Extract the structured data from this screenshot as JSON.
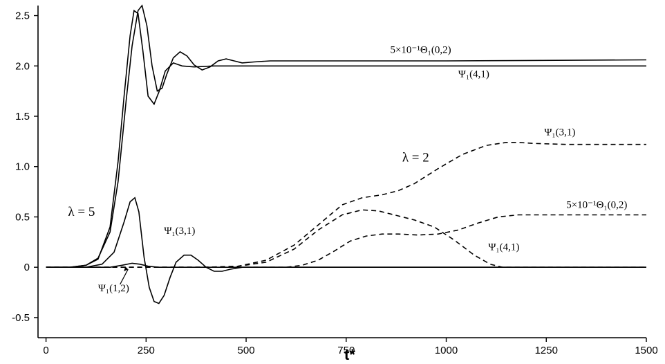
{
  "chart_data": {
    "type": "line",
    "title": "",
    "xlabel": "t*",
    "ylabel": "",
    "xlim": [
      -20,
      1500
    ],
    "ylim": [
      -0.7,
      2.6
    ],
    "x_ticks": [
      0,
      250,
      500,
      750,
      1000,
      1250,
      1500
    ],
    "y_ticks": [
      -0.5,
      0,
      0.5,
      1.0,
      1.5,
      2.0,
      2.5
    ],
    "x_tick_labels": [
      "0",
      "250",
      "500",
      "750",
      "1000",
      "1250",
      "1500"
    ],
    "y_tick_labels": [
      "-0.5",
      "0",
      "0.5",
      "1.0",
      "1.5",
      "2.0",
      "2.5"
    ],
    "grid": false,
    "annotations": [
      {
        "id": "lam5",
        "text": "λ = 5",
        "x": 55,
        "y": 0.51
      },
      {
        "id": "lam2",
        "text": "λ = 2",
        "x": 890,
        "y": 1.05
      },
      {
        "id": "t_theta_solid",
        "text": "5×10⁻¹Θ₁(0,2)",
        "x": 860,
        "y": 2.13
      },
      {
        "id": "t_psi41_solid",
        "text": "Ψ₁(4,1)",
        "x": 1030,
        "y": 1.89
      },
      {
        "id": "t_psi31_dashed",
        "text": "Ψ₁(3,1)",
        "x": 1245,
        "y": 1.31
      },
      {
        "id": "t_theta_dashed",
        "text": "5×10⁻¹Θ₁(0,2)",
        "x": 1300,
        "y": 0.59
      },
      {
        "id": "t_psi31_solid",
        "text": "Ψ₁(3,1)",
        "x": 295,
        "y": 0.33
      },
      {
        "id": "t_psi41_dashed",
        "text": "Ψ₁(4,1)",
        "x": 1105,
        "y": 0.17
      },
      {
        "id": "t_psi12",
        "text": "Ψ₁(1,2)",
        "x": 130,
        "y": -0.24
      }
    ],
    "series": [
      {
        "style": "solid",
        "label": "5×10⁻¹Θ₁(0,2)",
        "group": "λ = 5",
        "x": [
          0,
          60,
          100,
          130,
          160,
          180,
          200,
          215,
          230,
          240,
          252,
          265,
          278,
          290,
          302,
          318,
          335,
          352,
          370,
          390,
          410,
          430,
          450,
          470,
          490,
          520,
          560,
          700,
          1000,
          1500
        ],
        "y": [
          0,
          0,
          0.02,
          0.09,
          0.35,
          0.85,
          1.65,
          2.2,
          2.55,
          2.6,
          2.4,
          2.0,
          1.75,
          1.78,
          1.92,
          2.08,
          2.14,
          2.1,
          2.01,
          1.96,
          1.99,
          2.05,
          2.07,
          2.05,
          2.03,
          2.04,
          2.05,
          2.05,
          2.05,
          2.06
        ]
      },
      {
        "style": "solid",
        "label": "Ψ₁(4,1)",
        "group": "λ = 5",
        "x": [
          0,
          60,
          100,
          130,
          160,
          180,
          195,
          210,
          220,
          230,
          242,
          255,
          270,
          283,
          298,
          318,
          340,
          370,
          420,
          500,
          700,
          1000,
          1500
        ],
        "y": [
          0,
          0,
          0.02,
          0.08,
          0.4,
          1.05,
          1.7,
          2.3,
          2.55,
          2.52,
          2.15,
          1.7,
          1.62,
          1.75,
          1.95,
          2.03,
          2.0,
          1.99,
          2.0,
          2.0,
          2.0,
          2.0,
          2.0
        ]
      },
      {
        "style": "solid",
        "label": "Ψ₁(3,1)",
        "group": "λ = 5",
        "x": [
          0,
          100,
          140,
          170,
          195,
          210,
          222,
          232,
          245,
          258,
          270,
          282,
          295,
          310,
          325,
          345,
          362,
          380,
          400,
          420,
          440,
          460,
          490,
          540,
          700,
          1000,
          1500
        ],
        "y": [
          0,
          0,
          0.03,
          0.15,
          0.45,
          0.65,
          0.69,
          0.55,
          0.1,
          -0.2,
          -0.34,
          -0.36,
          -0.28,
          -0.1,
          0.05,
          0.12,
          0.12,
          0.07,
          0.0,
          -0.04,
          -0.04,
          -0.02,
          0.0,
          0.0,
          0.0,
          0.0,
          0.0
        ]
      },
      {
        "style": "solid",
        "label": "Ψ₁(1,2)",
        "group": "λ = 5",
        "x": [
          0,
          160,
          190,
          215,
          235,
          255,
          280,
          320,
          500,
          1500
        ],
        "y": [
          0,
          0,
          0.02,
          0.04,
          0.03,
          0.01,
          0.0,
          0.0,
          0.0,
          0.0
        ]
      },
      {
        "style": "dashed",
        "label": "Ψ₁(3,1)",
        "group": "λ = 2",
        "x": [
          0,
          300,
          400,
          480,
          550,
          620,
          680,
          740,
          790,
          840,
          880,
          920,
          980,
          1040,
          1100,
          1150,
          1180,
          1220,
          1300,
          1400,
          1500
        ],
        "y": [
          0,
          0,
          0.0,
          0.01,
          0.07,
          0.22,
          0.42,
          0.62,
          0.69,
          0.72,
          0.76,
          0.83,
          0.98,
          1.12,
          1.21,
          1.24,
          1.24,
          1.23,
          1.22,
          1.22,
          1.22
        ]
      },
      {
        "style": "dashed",
        "label": "Ψ₁(4,1)",
        "group": "λ = 2",
        "x": [
          0,
          300,
          400,
          480,
          550,
          620,
          680,
          740,
          790,
          830,
          870,
          920,
          970,
          1020,
          1070,
          1110,
          1140,
          1170,
          1220,
          1500
        ],
        "y": [
          0,
          0,
          0.0,
          0.01,
          0.05,
          0.18,
          0.37,
          0.52,
          0.57,
          0.56,
          0.52,
          0.47,
          0.4,
          0.27,
          0.12,
          0.03,
          0.0,
          0.0,
          0.0,
          0.0
        ]
      },
      {
        "style": "dashed",
        "label": "5×10⁻¹Θ₁(0,2)",
        "group": "λ = 2",
        "x": [
          0,
          500,
          600,
          640,
          680,
          720,
          760,
          800,
          840,
          880,
          930,
          980,
          1030,
          1080,
          1130,
          1180,
          1230,
          1300,
          1400,
          1500
        ],
        "y": [
          0,
          0,
          0.0,
          0.02,
          0.07,
          0.16,
          0.26,
          0.31,
          0.33,
          0.33,
          0.32,
          0.33,
          0.37,
          0.44,
          0.5,
          0.52,
          0.52,
          0.52,
          0.52,
          0.52
        ]
      }
    ]
  }
}
